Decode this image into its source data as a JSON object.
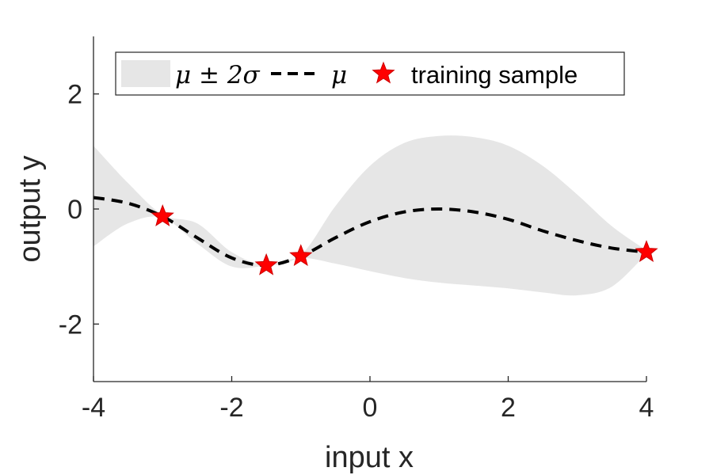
{
  "chart_data": {
    "type": "line",
    "title": "",
    "xlabel": "input x",
    "ylabel": "output y",
    "xlim": [
      -4,
      4
    ],
    "ylim": [
      -3,
      3
    ],
    "xticks": [
      -4,
      -2,
      0,
      2,
      4
    ],
    "xtick_labels": [
      "-4",
      "-2",
      "0",
      "2",
      "4"
    ],
    "yticks": [
      -2,
      0,
      2
    ],
    "ytick_labels": [
      "-2",
      "0",
      "2"
    ],
    "grid": false,
    "legend_position": "top",
    "legend": {
      "band_label": "μ ± 2σ",
      "mean_label": "μ",
      "sample_label": "training sample"
    },
    "colors": {
      "band": "#e6e6e6",
      "mean": "#000000",
      "sample": "#ff0000",
      "axis": "#262626"
    },
    "series": [
      {
        "name": "μ ± 2σ",
        "kind": "band",
        "x": [
          -4,
          -3.5,
          -3,
          -2.5,
          -2,
          -1.5,
          -1,
          -0.5,
          0,
          0.5,
          1,
          1.5,
          2,
          2.5,
          3,
          3.5,
          4
        ],
        "upper": [
          1.1,
          0.45,
          -0.1,
          -0.25,
          -0.75,
          -0.97,
          -0.8,
          0.05,
          0.75,
          1.15,
          1.27,
          1.25,
          1.1,
          0.75,
          0.25,
          -0.3,
          -0.72
        ],
        "lower": [
          -0.65,
          -0.25,
          -0.15,
          -0.6,
          -1.0,
          -0.98,
          -0.85,
          -0.95,
          -1.08,
          -1.2,
          -1.28,
          -1.33,
          -1.38,
          -1.45,
          -1.5,
          -1.35,
          -0.78
        ]
      },
      {
        "name": "μ",
        "kind": "mean",
        "x": [
          -4,
          -3.5,
          -3,
          -2.5,
          -2,
          -1.5,
          -1,
          -0.5,
          0,
          0.5,
          1,
          1.5,
          2,
          2.5,
          3,
          3.5,
          4
        ],
        "y": [
          0.2,
          0.1,
          -0.13,
          -0.5,
          -0.85,
          -0.98,
          -0.82,
          -0.5,
          -0.22,
          -0.05,
          0.0,
          -0.05,
          -0.18,
          -0.38,
          -0.55,
          -0.68,
          -0.75
        ]
      },
      {
        "name": "training sample",
        "kind": "points",
        "x": [
          -3,
          -1.5,
          -1,
          4
        ],
        "y": [
          -0.13,
          -0.98,
          -0.82,
          -0.75
        ]
      }
    ]
  }
}
